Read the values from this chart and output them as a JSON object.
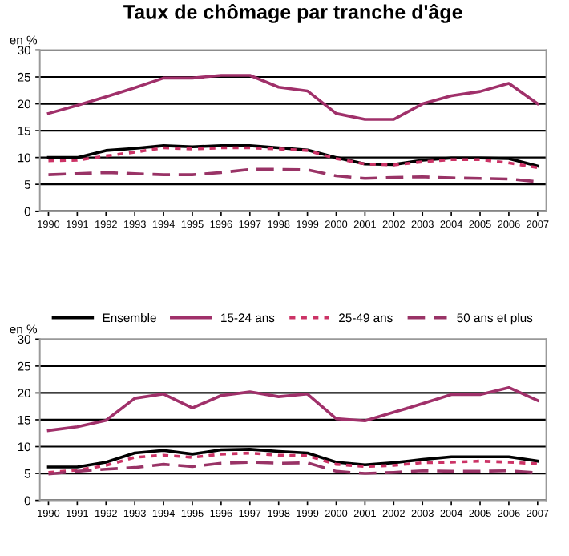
{
  "chart_data": [
    {
      "type": "line",
      "title": "Taux de chômage par tranche d'âge",
      "ylabel": "en %",
      "categories": [
        "1990",
        "1991",
        "1992",
        "1993",
        "1994",
        "1995",
        "1996",
        "1997",
        "1998",
        "1999",
        "2000",
        "2001",
        "2002",
        "2003",
        "2004",
        "2005",
        "2006",
        "2007"
      ],
      "ylim": [
        0,
        30
      ],
      "yticks": [
        0,
        5,
        10,
        15,
        20,
        25,
        30
      ],
      "grid": "y",
      "legend": false,
      "series": [
        {
          "color": "#000000",
          "line_style": "solid",
          "values": [
            10,
            10,
            11.3,
            11.7,
            12.2,
            12,
            12.2,
            12.2,
            11.8,
            11.4,
            10,
            8.8,
            8.7,
            9.5,
            9.9,
            9.9,
            9.8,
            8.4
          ]
        },
        {
          "color": "#a0306a",
          "line_style": "solid",
          "values": [
            18.2,
            19.7,
            21.3,
            23,
            24.8,
            24.8,
            25.3,
            25.3,
            23.1,
            22.4,
            18.2,
            17.1,
            17.1,
            20,
            21.5,
            22.3,
            23.8,
            20
          ]
        },
        {
          "color": "#cc3366",
          "line_style": "dotted",
          "values": [
            9.4,
            9.5,
            10.3,
            11,
            11.8,
            11.6,
            11.8,
            11.8,
            11.6,
            11.3,
            9.8,
            8.8,
            8.6,
            9.2,
            9.6,
            9.6,
            9,
            8.1
          ]
        },
        {
          "color": "#993366",
          "line_style": "dashed",
          "values": [
            6.8,
            7,
            7.2,
            7,
            6.8,
            6.8,
            7.2,
            7.8,
            7.8,
            7.7,
            6.6,
            6.1,
            6.3,
            6.4,
            6.2,
            6.1,
            6,
            5.5
          ]
        }
      ]
    },
    {
      "type": "line",
      "ylabel": "en %",
      "categories": [
        "1990",
        "1991",
        "1992",
        "1993",
        "1994",
        "1995",
        "1996",
        "1997",
        "1998",
        "1999",
        "2000",
        "2001",
        "2002",
        "2003",
        "2004",
        "2005",
        "2006",
        "2007"
      ],
      "ylim": [
        0,
        30
      ],
      "yticks": [
        0,
        5,
        10,
        15,
        20,
        25,
        30
      ],
      "grid": "y",
      "legend": "top",
      "series": [
        {
          "name": "Ensemble",
          "color": "#000000",
          "line_style": "solid",
          "values": [
            6.2,
            6.2,
            7.1,
            8.8,
            9.3,
            8.6,
            9.4,
            9.5,
            9.1,
            8.8,
            7.1,
            6.6,
            7,
            7.6,
            8.1,
            8.1,
            8.1,
            7.3
          ]
        },
        {
          "name": "15-24 ans",
          "color": "#a0306a",
          "line_style": "solid",
          "values": [
            13,
            13.7,
            14.9,
            19,
            19.8,
            17.2,
            19.5,
            20.2,
            19.3,
            19.8,
            15.2,
            14.8,
            16.4,
            18,
            19.7,
            19.7,
            21,
            18.6
          ]
        },
        {
          "name": "25-49 ans",
          "color": "#cc3366",
          "line_style": "dotted",
          "values": [
            5.2,
            5.6,
            6.5,
            8,
            8.4,
            8,
            8.6,
            8.8,
            8.4,
            8.3,
            6.7,
            6.3,
            6.5,
            7,
            7.1,
            7.3,
            7.1,
            6.8
          ]
        },
        {
          "name": "50 ans et plus",
          "color": "#993366",
          "line_style": "dashed",
          "values": [
            4.9,
            5.4,
            5.8,
            6.1,
            6.7,
            6.3,
            6.9,
            7.1,
            6.9,
            7,
            5.4,
            5,
            5.2,
            5.5,
            5.4,
            5.4,
            5.5,
            5.1
          ]
        }
      ]
    }
  ]
}
